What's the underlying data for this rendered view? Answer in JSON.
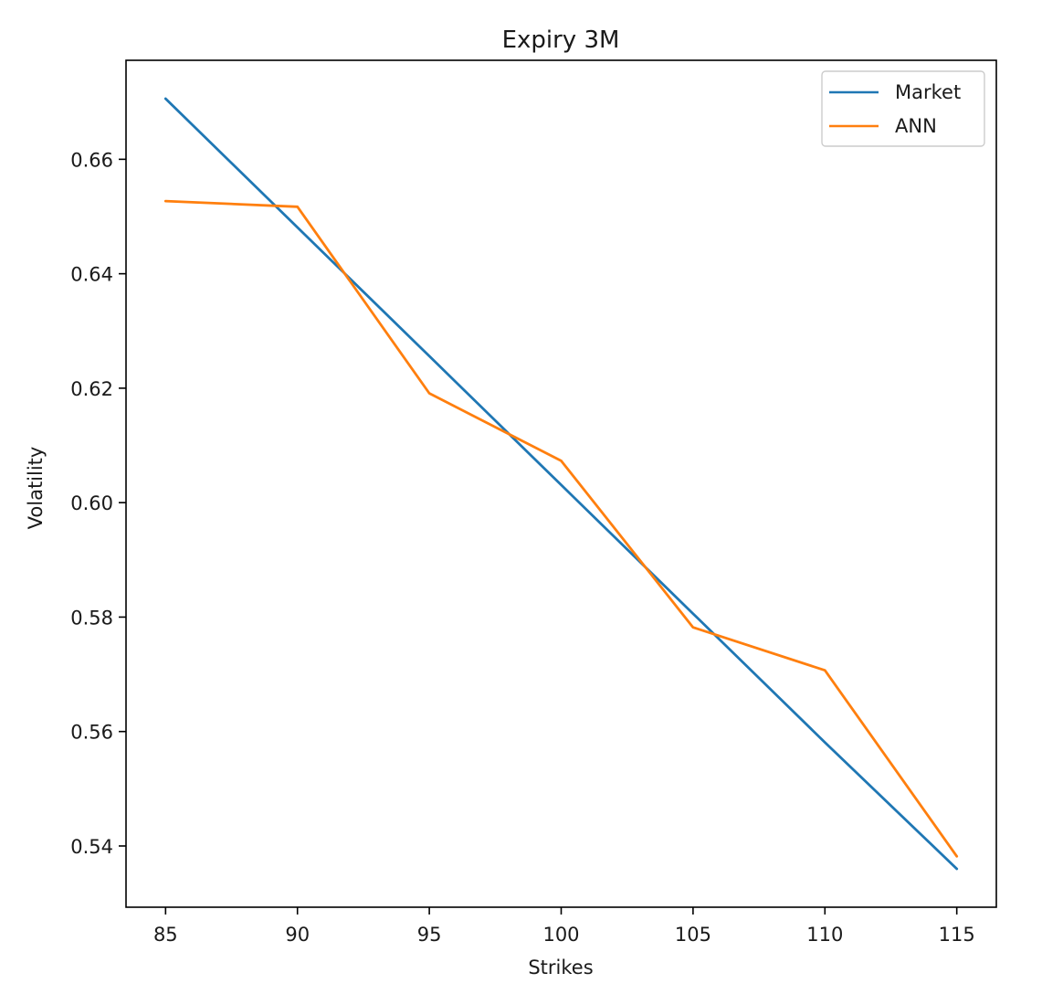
{
  "chart_data": {
    "type": "line",
    "title": "Expiry 3M",
    "xlabel": "Strikes",
    "ylabel": "Volatility",
    "x": [
      85,
      90,
      95,
      100,
      105,
      110,
      115
    ],
    "xticks": [
      "85",
      "90",
      "95",
      "100",
      "105",
      "110",
      "115"
    ],
    "yticks": [
      "0.54",
      "0.56",
      "0.58",
      "0.60",
      "0.62",
      "0.64",
      "0.66"
    ],
    "ytick_values": [
      0.54,
      0.56,
      0.58,
      0.6,
      0.62,
      0.64,
      0.66
    ],
    "xlim": [
      83.5,
      116.5
    ],
    "ylim": [
      0.5293,
      0.6773
    ],
    "grid": false,
    "legend_position": "top-right",
    "series": [
      {
        "name": "Market",
        "color": "#1f77b4",
        "values": [
          0.6706,
          0.6481,
          0.6256,
          0.6031,
          0.5806,
          0.5581,
          0.536
        ]
      },
      {
        "name": "ANN",
        "color": "#ff7f0e",
        "values": [
          0.6527,
          0.6517,
          0.6191,
          0.6073,
          0.5782,
          0.5707,
          0.5382
        ]
      }
    ]
  }
}
